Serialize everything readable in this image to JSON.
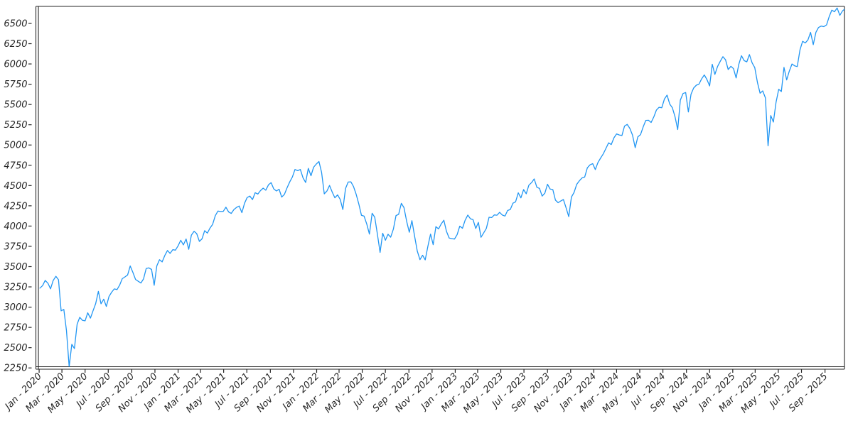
{
  "figure": {
    "background": "#ffffff",
    "axis_color": "#262626",
    "tick_label_color": "#262626"
  },
  "chart_data": {
    "type": "line",
    "title": "",
    "xlabel": "",
    "ylabel": "",
    "grid": false,
    "legend": false,
    "line_color": "#2196f3",
    "x_axis": {
      "scale": "time",
      "xlim": [
        "2019-12-30",
        "2025-10-26"
      ],
      "tick_labels": [
        [
          "2020-01-01",
          "Jan - 2020"
        ],
        [
          "2020-03-01",
          "Mar - 2020"
        ],
        [
          "2020-05-01",
          "May - 2020"
        ],
        [
          "2020-07-01",
          "Jul - 2020"
        ],
        [
          "2020-09-01",
          "Sep - 2020"
        ],
        [
          "2020-11-01",
          "Nov - 2020"
        ],
        [
          "2021-01-01",
          "Jan - 2021"
        ],
        [
          "2021-03-01",
          "Mar - 2021"
        ],
        [
          "2021-05-01",
          "May - 2021"
        ],
        [
          "2021-07-01",
          "Jul - 2021"
        ],
        [
          "2021-09-01",
          "Sep - 2021"
        ],
        [
          "2021-11-01",
          "Nov - 2021"
        ],
        [
          "2022-01-01",
          "Jan - 2022"
        ],
        [
          "2022-03-01",
          "Mar - 2022"
        ],
        [
          "2022-05-01",
          "May - 2022"
        ],
        [
          "2022-07-01",
          "Jul - 2022"
        ],
        [
          "2022-09-01",
          "Sep - 2022"
        ],
        [
          "2022-11-01",
          "Nov - 2022"
        ],
        [
          "2023-01-01",
          "Jan - 2023"
        ],
        [
          "2023-03-01",
          "Mar - 2023"
        ],
        [
          "2023-05-01",
          "May - 2023"
        ],
        [
          "2023-07-01",
          "Jul - 2023"
        ],
        [
          "2023-09-01",
          "Sep - 2023"
        ],
        [
          "2023-11-01",
          "Nov - 2023"
        ],
        [
          "2024-01-01",
          "Jan - 2024"
        ],
        [
          "2024-03-01",
          "Mar - 2024"
        ],
        [
          "2024-05-01",
          "May - 2024"
        ],
        [
          "2024-07-01",
          "Jul - 2024"
        ],
        [
          "2024-09-01",
          "Sep - 2024"
        ],
        [
          "2024-11-01",
          "Nov - 2024"
        ],
        [
          "2025-01-01",
          "Jan - 2025"
        ],
        [
          "2025-03-01",
          "Mar - 2025"
        ],
        [
          "2025-05-01",
          "May - 2025"
        ],
        [
          "2025-07-01",
          "Jul - 2025"
        ],
        [
          "2025-09-01",
          "Sep - 2025"
        ]
      ]
    },
    "y_axis": {
      "ylim": [
        2265,
        6710
      ],
      "ticks": [
        2250,
        2500,
        2750,
        3000,
        3250,
        3500,
        3750,
        4000,
        4250,
        4500,
        4750,
        5000,
        5250,
        5500,
        5750,
        6000,
        6250,
        6500
      ],
      "tick_format": "integer"
    },
    "series": {
      "start_date": "2020-01-03",
      "interval_days": 7,
      "values": [
        3235,
        3265,
        3330,
        3295,
        3226,
        3328,
        3380,
        3338,
        2954,
        2972,
        2711,
        2250,
        2541,
        2489,
        2790,
        2875,
        2837,
        2831,
        2930,
        2864,
        2955,
        3044,
        3194,
        3041,
        3098,
        3009,
        3130,
        3185,
        3225,
        3216,
        3271,
        3351,
        3373,
        3397,
        3508,
        3427,
        3341,
        3319,
        3298,
        3348,
        3477,
        3484,
        3465,
        3270,
        3509,
        3585,
        3558,
        3638,
        3699,
        3663,
        3709,
        3703,
        3756,
        3825,
        3768,
        3841,
        3714,
        3887,
        3935,
        3907,
        3811,
        3842,
        3943,
        3913,
        3975,
        4020,
        4129,
        4185,
        4180,
        4181,
        4233,
        4174,
        4156,
        4204,
        4230,
        4247,
        4166,
        4281,
        4352,
        4370,
        4327,
        4412,
        4395,
        4437,
        4468,
        4442,
        4509,
        4535,
        4459,
        4433,
        4455,
        4357,
        4391,
        4471,
        4545,
        4605,
        4698,
        4683,
        4698,
        4595,
        4538,
        4712,
        4621,
        4726,
        4766,
        4796,
        4663,
        4398,
        4432,
        4501,
        4419,
        4349,
        4385,
        4329,
        4204,
        4463,
        4543,
        4546,
        4488,
        4393,
        4272,
        4132,
        4123,
        4024,
        3901,
        4158,
        4109,
        3901,
        3675,
        3912,
        3825,
        3899,
        3863,
        3962,
        4130,
        4145,
        4280,
        4228,
        4058,
        3924,
        4067,
        3873,
        3693,
        3586,
        3640,
        3583,
        3753,
        3901,
        3771,
        3993,
        3965,
        4026,
        4072,
        3934,
        3852,
        3845,
        3840,
        3895,
        3999,
        3973,
        4071,
        4136,
        4090,
        4079,
        3970,
        4046,
        3862,
        3917,
        3971,
        4109,
        4105,
        4138,
        4134,
        4169,
        4136,
        4124,
        4192,
        4205,
        4282,
        4299,
        4410,
        4348,
        4450,
        4399,
        4505,
        4536,
        4582,
        4478,
        4464,
        4370,
        4406,
        4516,
        4457,
        4450,
        4320,
        4288,
        4309,
        4328,
        4224,
        4117,
        4358,
        4415,
        4514,
        4559,
        4594,
        4604,
        4719,
        4755,
        4770,
        4697,
        4784,
        4840,
        4891,
        4959,
        5027,
        5006,
        5089,
        5137,
        5124,
        5117,
        5234,
        5254,
        5204,
        5123,
        4967,
        5100,
        5128,
        5223,
        5303,
        5305,
        5278,
        5347,
        5432,
        5465,
        5460,
        5567,
        5615,
        5505,
        5459,
        5346,
        5190,
        5554,
        5635,
        5648,
        5408,
        5626,
        5703,
        5738,
        5751,
        5815,
        5865,
        5808,
        5729,
        5996,
        5871,
        5969,
        6032,
        6090,
        6051,
        5931,
        5971,
        5942,
        5827,
        5997,
        6101,
        6041,
        6026,
        6115,
        6013,
        5955,
        5770,
        5639,
        5668,
        5581,
        4990,
        5363,
        5283,
        5525,
        5687,
        5660,
        5958,
        5803,
        5912,
        6000,
        5977,
        5968,
        6173,
        6279,
        6260,
        6297,
        6389,
        6238,
        6389,
        6450,
        6467,
        6460,
        6481,
        6584,
        6664,
        6644,
        6690,
        6600,
        6654,
        6675
      ]
    }
  }
}
